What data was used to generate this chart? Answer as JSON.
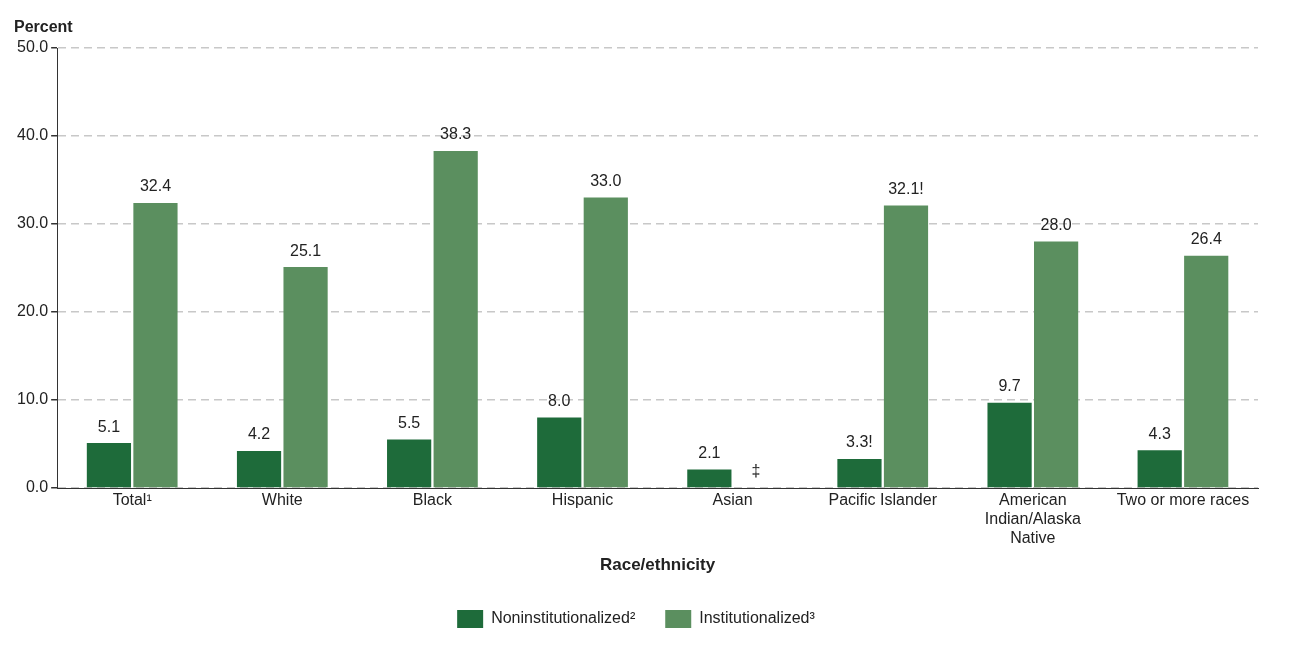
{
  "chart_data": {
    "type": "bar",
    "xlabel": "Race/ethnicity",
    "ylabel": "Percent",
    "categories": [
      "Total¹",
      "White",
      "Black",
      "Hispanic",
      "Asian",
      "Pacific Islander",
      "American Indian/Alaska Native",
      "Two or more races"
    ],
    "series": [
      {
        "name": "Noninstitutionalized²",
        "color": "#1e6b3a",
        "values": [
          5.1,
          4.2,
          5.5,
          8.0,
          2.1,
          3.3,
          9.7,
          4.3
        ],
        "value_labels": [
          "5.1",
          "4.2",
          "5.5",
          "8.0",
          "2.1",
          "3.3!",
          "9.7",
          "4.3"
        ]
      },
      {
        "name": "Institutionalized³",
        "color": "#5b8f5f",
        "values": [
          32.4,
          25.1,
          38.3,
          33.0,
          null,
          32.1,
          28.0,
          26.4
        ],
        "value_labels": [
          "32.4",
          "25.1",
          "38.3",
          "33.0",
          "‡",
          "32.1!",
          "28.0",
          "26.4"
        ]
      }
    ],
    "ylim": [
      0,
      50
    ],
    "yticks": [
      {
        "value": 0,
        "label": "0.0"
      },
      {
        "value": 10,
        "label": "10.0"
      },
      {
        "value": 20,
        "label": "20.0"
      },
      {
        "value": 30,
        "label": "30.0"
      },
      {
        "value": 40,
        "label": "40.0"
      },
      {
        "value": 50,
        "label": "50.0"
      }
    ],
    "grid": "y",
    "line_style": "dashed",
    "legend": "bottom"
  }
}
